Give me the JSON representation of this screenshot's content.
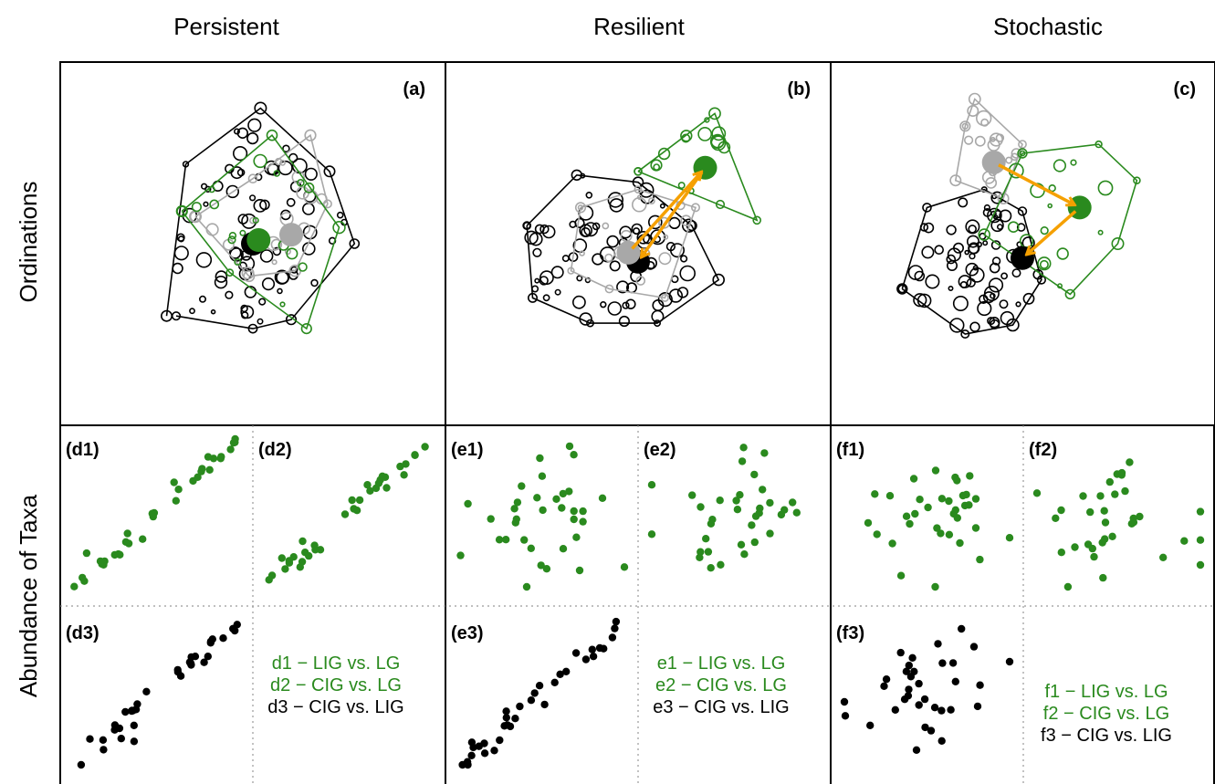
{
  "colors": {
    "green": "#2a8a1e",
    "gray": "#a8a8a8",
    "black": "#000000",
    "orange": "#f5a000"
  },
  "column_headers": [
    "Persistent",
    "Resilient",
    "Stochastic"
  ],
  "row_labels": [
    "Ordinations",
    "Abundance of Taxa"
  ],
  "panel_letters": [
    "(a)",
    "(b)",
    "(c)",
    "(d1)",
    "(d2)",
    "(d3)",
    "(e1)",
    "(e2)",
    "(e3)",
    "(f1)",
    "(f2)",
    "(f3)"
  ],
  "legends": [
    {
      "green": [
        "d1 − LIG vs. LG",
        "d2 − CIG vs. LG"
      ],
      "black": "d3 − CIG vs. LIG"
    },
    {
      "green": [
        "e1 − LIG vs. LG",
        "e2 − CIG vs. LG"
      ],
      "black": "e3 − CIG vs. LIG"
    },
    {
      "green": [
        "f1 − LIG vs. LG",
        "f2 − CIG vs. LG"
      ],
      "black": "f3 − CIG vs. LIG"
    }
  ],
  "chart_data": [
    {
      "type": "scatter",
      "panel": "(a)",
      "scenario": "Persistent",
      "hulls": {
        "black": [
          [
            -0.45,
            -0.4
          ],
          [
            -0.35,
            0.44
          ],
          [
            0.04,
            0.75
          ],
          [
            0.4,
            0.4
          ],
          [
            0.53,
            0.0
          ],
          [
            0.2,
            -0.42
          ],
          [
            0.0,
            -0.47
          ],
          [
            -0.4,
            -0.4
          ]
        ],
        "green": [
          [
            -0.37,
            0.18
          ],
          [
            0.1,
            0.6
          ],
          [
            0.45,
            0.09
          ],
          [
            0.28,
            -0.47
          ],
          [
            -0.12,
            -0.16
          ],
          [
            -0.37,
            0.18
          ]
        ],
        "gray": [
          [
            -0.3,
            0.15
          ],
          [
            0.0,
            0.36
          ],
          [
            0.3,
            0.6
          ],
          [
            0.39,
            0.22
          ],
          [
            0.22,
            -0.15
          ],
          [
            -0.02,
            -0.18
          ],
          [
            -0.3,
            0.15
          ]
        ]
      },
      "centroids": {
        "black": [
          0.0,
          0.0
        ],
        "green": [
          0.03,
          0.02
        ],
        "gray": [
          0.2,
          0.05
        ]
      },
      "arrows": []
    },
    {
      "type": "scatter",
      "panel": "(b)",
      "scenario": "Resilient",
      "hulls": {
        "black": [
          [
            -0.58,
            0.1
          ],
          [
            -0.32,
            0.38
          ],
          [
            0.0,
            0.34
          ],
          [
            0.28,
            0.1
          ],
          [
            0.42,
            -0.2
          ],
          [
            0.1,
            -0.44
          ],
          [
            -0.25,
            -0.44
          ],
          [
            -0.55,
            -0.3
          ],
          [
            -0.58,
            0.1
          ]
        ],
        "green": [
          [
            0.0,
            0.4
          ],
          [
            0.4,
            0.72
          ],
          [
            0.62,
            0.13
          ],
          [
            0.0,
            0.4
          ]
        ],
        "gray": [
          [
            -0.3,
            0.2
          ],
          [
            0.0,
            0.3
          ],
          [
            0.3,
            0.2
          ],
          [
            0.14,
            -0.3
          ],
          [
            -0.15,
            -0.25
          ],
          [
            -0.35,
            -0.15
          ],
          [
            -0.3,
            0.2
          ]
        ]
      },
      "centroids": {
        "black": [
          0.0,
          -0.1
        ],
        "green": [
          0.35,
          0.42
        ],
        "gray": [
          -0.05,
          -0.05
        ]
      },
      "arrows": [
        {
          "from": "gray",
          "to": "green"
        },
        {
          "from": "green",
          "to": "black"
        }
      ]
    },
    {
      "type": "scatter",
      "panel": "(c)",
      "scenario": "Stochastic",
      "hulls": {
        "black": [
          [
            -0.63,
            -0.25
          ],
          [
            -0.5,
            0.2
          ],
          [
            -0.2,
            0.3
          ],
          [
            0.0,
            0.18
          ],
          [
            0.1,
            -0.2
          ],
          [
            -0.05,
            -0.45
          ],
          [
            -0.3,
            -0.5
          ],
          [
            -0.63,
            -0.25
          ]
        ],
        "green": [
          [
            0.0,
            0.5
          ],
          [
            0.4,
            0.55
          ],
          [
            0.6,
            0.35
          ],
          [
            0.5,
            0.0
          ],
          [
            0.25,
            -0.28
          ],
          [
            -0.2,
            0.05
          ],
          [
            0.0,
            0.5
          ]
        ],
        "gray": [
          [
            -0.3,
            0.65
          ],
          [
            -0.25,
            0.8
          ],
          [
            0.0,
            0.55
          ],
          [
            -0.1,
            0.25
          ],
          [
            -0.35,
            0.35
          ],
          [
            -0.3,
            0.65
          ]
        ]
      },
      "centroids": {
        "black": [
          0.0,
          -0.08
        ],
        "green": [
          0.3,
          0.2
        ],
        "gray": [
          -0.15,
          0.45
        ]
      },
      "arrows": [
        {
          "from": "gray",
          "to": "green"
        },
        {
          "from": "green",
          "to": "black"
        }
      ]
    },
    {
      "type": "scatter",
      "panel": "(d1)",
      "note": "LIG vs. LG",
      "color": "green",
      "trend": 0.92
    },
    {
      "type": "scatter",
      "panel": "(d2)",
      "note": "CIG vs. LG",
      "color": "green",
      "trend": 0.95
    },
    {
      "type": "scatter",
      "panel": "(d3)",
      "note": "CIG vs. LIG",
      "color": "black",
      "trend": 0.93
    },
    {
      "type": "scatter",
      "panel": "(e1)",
      "note": "LIG vs. LG",
      "color": "green",
      "trend": 0.0
    },
    {
      "type": "scatter",
      "panel": "(e2)",
      "note": "CIG vs. LG",
      "color": "green",
      "trend": 0.0
    },
    {
      "type": "scatter",
      "panel": "(e3)",
      "note": "CIG vs. LIG",
      "color": "black",
      "trend": 0.95
    },
    {
      "type": "scatter",
      "panel": "(f1)",
      "note": "LIG vs. LG",
      "color": "green",
      "trend": 0.0
    },
    {
      "type": "scatter",
      "panel": "(f2)",
      "note": "CIG vs. LG",
      "color": "green",
      "trend": 0.0
    },
    {
      "type": "scatter",
      "panel": "(f3)",
      "note": "CIG vs. LIG",
      "color": "black",
      "trend": 0.0
    }
  ]
}
